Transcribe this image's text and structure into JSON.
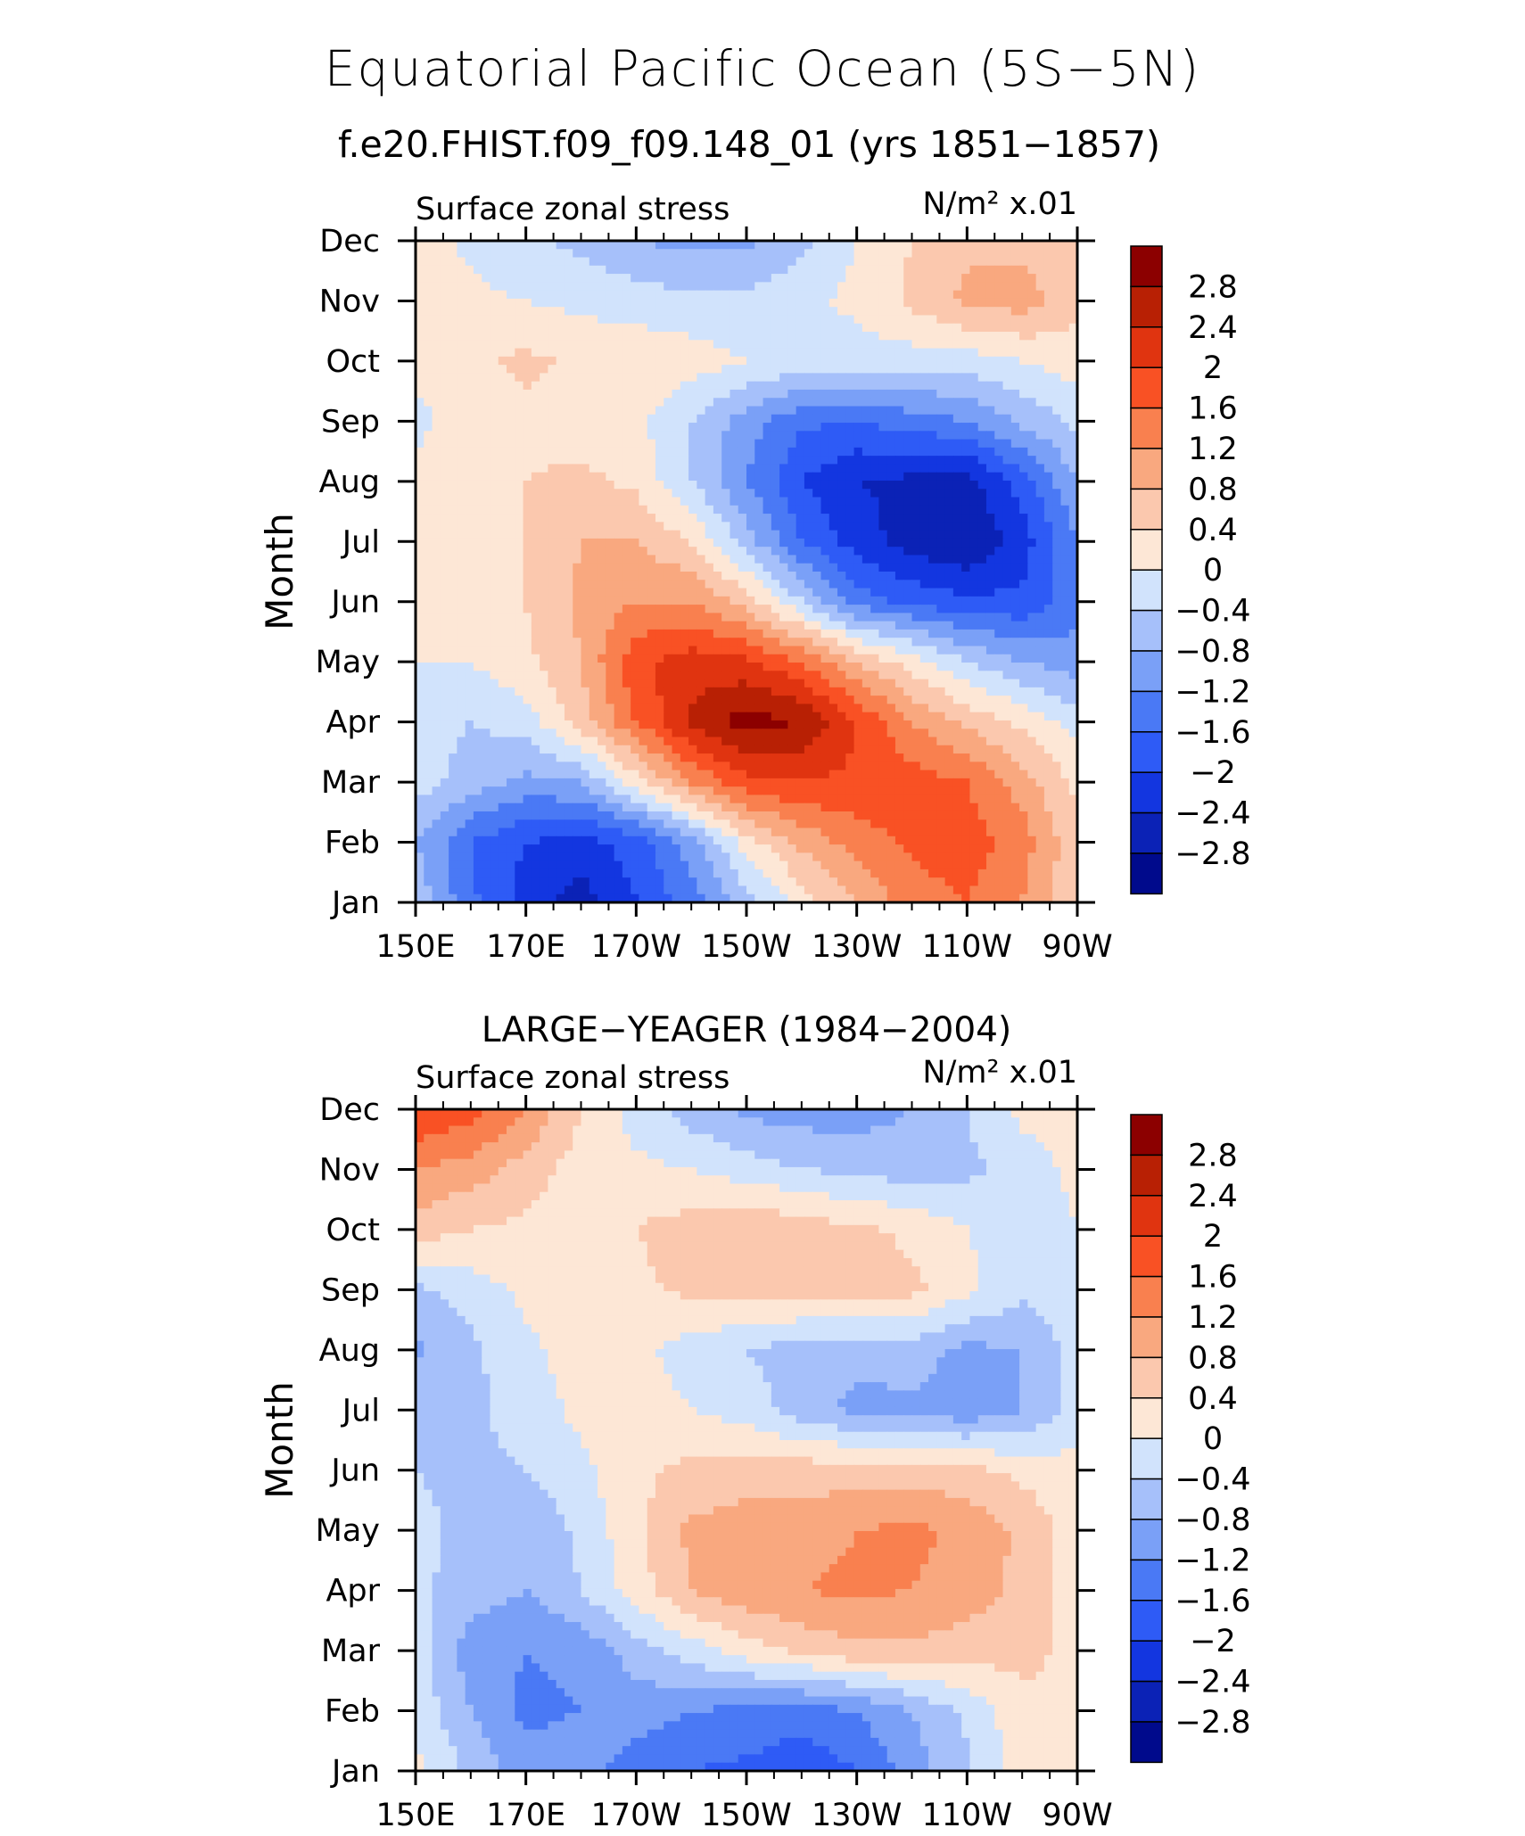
{
  "page": {
    "title": "Equatorial Pacific Ocean (5S−5N)",
    "subtitle": "f.e20.FHIST.f09_f09.148_01 (yrs 1851−1857)"
  },
  "colors": {
    "levels": [
      "#000a8c",
      "#0b22b6",
      "#1336e0",
      "#2e5bf6",
      "#4a79f5",
      "#7aa0f7",
      "#a6c0fa",
      "#d1e3fc",
      "#fde7d6",
      "#fbc8ae",
      "#f9a87f",
      "#f9804f",
      "#f95124",
      "#e03410",
      "#b82004",
      "#8c0000"
    ]
  },
  "chart_data": [
    {
      "type": "heatmap",
      "title": "",
      "left_label": "Surface zonal stress",
      "units_label": "N/m² x.01",
      "xlabel": "",
      "ylabel": "Month",
      "x_ticks": [
        "150E",
        "170E",
        "170W",
        "150W",
        "130W",
        "110W",
        "90W"
      ],
      "x_lon": [
        150,
        170,
        190,
        210,
        230,
        250,
        270
      ],
      "xlim": [
        150,
        270
      ],
      "y_ticks": [
        "Jan",
        "Feb",
        "Mar",
        "Apr",
        "May",
        "Jun",
        "Jul",
        "Aug",
        "Sep",
        "Oct",
        "Nov",
        "Dec"
      ],
      "colorbar_labels": [
        "2.8",
        "2.4",
        "2",
        "1.6",
        "1.2",
        "0.8",
        "0.4",
        "0",
        "−0.4",
        "−0.8",
        "−1.2",
        "−1.6",
        "−2",
        "−2.4",
        "−2.8"
      ],
      "contour_levels": [
        -2.8,
        -2.4,
        -2,
        -1.6,
        -1.2,
        -0.8,
        -0.4,
        0,
        0.4,
        0.8,
        1.2,
        1.6,
        2,
        2.4,
        2.8
      ],
      "lon": [
        150,
        160,
        170,
        180,
        190,
        200,
        210,
        220,
        230,
        240,
        250,
        260,
        270
      ],
      "values": [
        [
          -0.5,
          -1.5,
          -2.2,
          -2.6,
          -2.0,
          -1.4,
          -0.6,
          0.2,
          0.8,
          1.4,
          1.6,
          1.2,
          0.4
        ],
        [
          -0.8,
          -1.6,
          -2.0,
          -2.2,
          -1.8,
          -1.0,
          0.2,
          0.9,
          1.4,
          1.7,
          1.8,
          1.4,
          0.5
        ],
        [
          -0.2,
          -0.6,
          -0.9,
          -0.8,
          0.2,
          1.2,
          1.9,
          2.0,
          1.9,
          1.8,
          1.6,
          1.0,
          0.3
        ],
        [
          -0.2,
          -0.4,
          -0.2,
          0.6,
          1.6,
          2.5,
          3.0,
          2.8,
          2.0,
          1.2,
          0.7,
          0.3,
          -0.2
        ],
        [
          0.0,
          0.0,
          0.3,
          0.8,
          1.9,
          2.2,
          2.1,
          1.6,
          0.8,
          0.2,
          -0.4,
          -0.8,
          -1.0
        ],
        [
          0.1,
          0.2,
          0.4,
          0.9,
          1.2,
          1.2,
          0.6,
          -0.4,
          -1.4,
          -1.7,
          -1.9,
          -1.9,
          -1.4
        ],
        [
          0.2,
          0.3,
          0.4,
          0.8,
          0.8,
          0.4,
          -0.6,
          -1.6,
          -2.2,
          -2.6,
          -2.8,
          -2.2,
          -1.2
        ],
        [
          0.1,
          0.2,
          0.4,
          0.5,
          0.3,
          -0.4,
          -1.2,
          -2.0,
          -2.4,
          -2.5,
          -2.6,
          -1.8,
          -0.8
        ],
        [
          -0.1,
          0.2,
          0.3,
          0.2,
          0.1,
          -0.4,
          -1.0,
          -1.5,
          -1.6,
          -1.4,
          -1.2,
          -0.7,
          -0.3
        ],
        [
          0.1,
          0.3,
          0.5,
          0.3,
          0.3,
          0.2,
          0.0,
          -0.1,
          -0.2,
          -0.2,
          -0.2,
          0.0,
          0.2
        ],
        [
          0.2,
          0.1,
          0.0,
          -0.1,
          -0.2,
          -0.3,
          -0.3,
          -0.1,
          0.1,
          0.5,
          0.9,
          1.0,
          0.5
        ],
        [
          0.2,
          -0.1,
          -0.3,
          -0.5,
          -0.8,
          -0.9,
          -0.9,
          -0.5,
          0.0,
          0.4,
          0.7,
          0.7,
          0.4
        ]
      ]
    },
    {
      "type": "heatmap",
      "title": "LARGE−YEAGER (1984−2004)",
      "left_label": "Surface zonal stress",
      "units_label": "N/m² x.01",
      "xlabel": "",
      "ylabel": "Month",
      "x_ticks": [
        "150E",
        "170E",
        "170W",
        "150W",
        "130W",
        "110W",
        "90W"
      ],
      "x_lon": [
        150,
        170,
        190,
        210,
        230,
        250,
        270
      ],
      "xlim": [
        150,
        270
      ],
      "y_ticks": [
        "Jan",
        "Feb",
        "Mar",
        "Apr",
        "May",
        "Jun",
        "Jul",
        "Aug",
        "Sep",
        "Oct",
        "Nov",
        "Dec"
      ],
      "colorbar_labels": [
        "2.8",
        "2.4",
        "2",
        "1.6",
        "1.2",
        "0.8",
        "0.4",
        "0",
        "−0.4",
        "−0.8",
        "−1.2",
        "−1.6",
        "−2",
        "−2.4",
        "−2.8"
      ],
      "contour_levels": [
        -2.8,
        -2.4,
        -2,
        -1.6,
        -1.2,
        -0.8,
        -0.4,
        0,
        0.4,
        0.8,
        1.2,
        1.6,
        2,
        2.4,
        2.8
      ],
      "lon": [
        150,
        160,
        170,
        180,
        190,
        200,
        210,
        220,
        230,
        240,
        250,
        260,
        270
      ],
      "values": [
        [
          0.1,
          -0.5,
          -1.0,
          -1.0,
          -1.4,
          -1.6,
          -1.7,
          -1.9,
          -1.6,
          -1.0,
          -0.5,
          0.2,
          0.3
        ],
        [
          -0.1,
          -0.8,
          -1.3,
          -1.2,
          -1.0,
          -1.2,
          -1.3,
          -1.4,
          -1.2,
          -0.8,
          -0.3,
          0.3,
          0.4
        ],
        [
          -0.2,
          -1.0,
          -1.2,
          -1.1,
          -0.6,
          -0.2,
          0.2,
          0.5,
          0.7,
          0.7,
          0.6,
          0.5,
          0.3
        ],
        [
          -0.3,
          -0.6,
          -0.8,
          -0.4,
          0.2,
          0.8,
          1.1,
          1.2,
          1.3,
          1.2,
          1.0,
          0.7,
          0.2
        ],
        [
          -0.3,
          -0.5,
          -0.8,
          -0.3,
          0.3,
          0.9,
          1.0,
          1.0,
          1.2,
          1.3,
          1.1,
          0.7,
          0.2
        ],
        [
          -0.4,
          -0.5,
          -0.4,
          -0.1,
          0.3,
          0.5,
          0.6,
          0.6,
          0.6,
          0.6,
          0.5,
          0.3,
          0.1
        ],
        [
          -0.5,
          -0.5,
          -0.2,
          0.1,
          0.2,
          0.0,
          -0.2,
          -0.6,
          -0.9,
          -0.9,
          -1.1,
          -0.8,
          -0.2
        ],
        [
          -0.9,
          -0.5,
          -0.1,
          0.2,
          0.1,
          -0.2,
          -0.4,
          -0.6,
          -0.7,
          -0.6,
          -0.9,
          -0.8,
          -0.2
        ],
        [
          -0.5,
          -0.2,
          0.1,
          0.2,
          0.3,
          0.5,
          0.6,
          0.6,
          0.7,
          0.5,
          0.1,
          -0.3,
          -0.1
        ],
        [
          0.6,
          0.4,
          0.3,
          0.2,
          0.4,
          0.6,
          0.8,
          0.6,
          0.5,
          0.3,
          0.0,
          -0.2,
          0.0
        ],
        [
          1.2,
          1.0,
          0.6,
          0.2,
          0.1,
          0.0,
          -0.2,
          -0.4,
          -0.5,
          -0.6,
          -0.5,
          -0.2,
          0.1
        ],
        [
          2.0,
          1.8,
          1.2,
          0.4,
          -0.2,
          -0.6,
          -0.9,
          -1.0,
          -1.0,
          -0.8,
          -0.4,
          0.1,
          0.2
        ]
      ]
    }
  ]
}
